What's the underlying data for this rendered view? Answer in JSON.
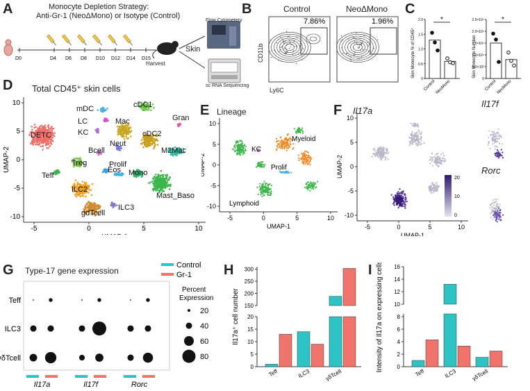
{
  "colors": {
    "control": "#2ec4c6",
    "gr1": "#f0746b",
    "green": "#3cb64a",
    "orange": "#f08c28",
    "purple": "#5a3aa0",
    "gray": "#b8b6c8"
  },
  "panelA": {
    "label": "A",
    "title1": "Monocyte Depletion Strategy:",
    "title2": "Anti-Gr-1 (NeoΔMono) or Isotype (Control)",
    "days": [
      "D0",
      "D4",
      "D6",
      "D8",
      "D10",
      "D12",
      "D14",
      "D15"
    ],
    "harvest": "Harvest",
    "skin": "Skin",
    "flow": "Flow Cytometery",
    "scrna": "sc RNA Sequencing"
  },
  "panelB": {
    "label": "B",
    "control": "Control",
    "neo": "NeoΔMono",
    "pct_control": "7.86%",
    "pct_neo": "1.96%",
    "ylab": "CD11b",
    "xlab": "Ly6C"
  },
  "panelC": {
    "label": "C",
    "ylab1": "Skin Monocyte % of CD45⁺",
    "ylab2": "Skin Monocyte Number",
    "cats": [
      "Control",
      "NeoMono"
    ],
    "star": "*",
    "left": {
      "bars": [
        1.3,
        0.58
      ],
      "ticks": [
        "0",
        "0.5",
        "1.0",
        "1.5",
        "2.0"
      ],
      "ymax": 2.0,
      "points": [
        [
          1.55,
          1.22,
          0.95
        ],
        [
          0.68,
          0.55,
          0.52
        ]
      ]
    },
    "right": {
      "bars": [
        1.5,
        0.8
      ],
      "ticks": [
        "0",
        "5.0×10³",
        "1.0×10⁴",
        "1.5×10⁴",
        "2.0×10⁴",
        "2.5×10⁴"
      ],
      "ymax": 2.5,
      "points": [
        [
          1.9,
          1.65,
          0.7
        ],
        [
          1.1,
          0.75,
          0.55
        ]
      ]
    }
  },
  "panelD": {
    "label": "D",
    "title": "Total CD45⁺ skin cells",
    "xlab": "UMAP-1",
    "ylab": "UMAP-2",
    "xticks": [
      "-5",
      "0",
      "5",
      "10"
    ],
    "yticks": [
      "10",
      "5",
      "0",
      "-5",
      "-10"
    ],
    "clusters": [
      "mDC",
      "cDC1",
      "LC",
      "Mac",
      "KC",
      "Gran",
      "cDC2",
      "DETC",
      "Neut",
      "Bcell",
      "M2Mac",
      "Treg",
      "Eos",
      "Teff",
      "Prolif",
      "Mono",
      "ILC2",
      "Mast_Baso",
      "gdTcell",
      "ILC3"
    ]
  },
  "panelE": {
    "label": "E",
    "title": "Lineage",
    "xlab": "UMAP-1",
    "ylab": "UMAP-2",
    "xticks": [
      "-5",
      "0",
      "5",
      "10"
    ],
    "yticks": [
      "10",
      "5",
      "0",
      "-5",
      "-10"
    ],
    "groups": [
      "Myeloid",
      "KC",
      "Prolif",
      "Lymphoid"
    ]
  },
  "panelF": {
    "label": "F",
    "gene_main": "Il17a",
    "gene2": "Il17f",
    "gene3": "Rorc",
    "xlab": "UMAP-1",
    "ylab": "UMAP-2",
    "xticks": [
      "-5",
      "0",
      "5",
      "10"
    ],
    "yticks": [
      "10",
      "5",
      "0",
      "-5",
      "-10"
    ],
    "scale": [
      "20",
      "10",
      "0"
    ]
  },
  "panelG": {
    "label": "G",
    "title": "Type-17 gene expression",
    "legend": [
      "Control",
      "Gr-1"
    ],
    "rows": [
      "Teff",
      "ILC3",
      "γδTcell"
    ],
    "genes": [
      "Il17a",
      "Il17f",
      "Rorc"
    ],
    "size_title1": "Percent",
    "size_title2": "Expression",
    "size_vals": [
      "20",
      "40",
      "60",
      "80"
    ],
    "dots": [
      [
        2,
        6,
        2,
        6,
        2,
        6
      ],
      [
        10,
        10,
        10,
        22,
        10,
        10
      ],
      [
        12,
        18,
        9,
        13,
        10,
        16
      ]
    ]
  },
  "panelH": {
    "label": "H",
    "ylab": "Il17a⁺ cell number",
    "cats": [
      "Teff",
      "ILC3",
      "γδTcell"
    ],
    "control": [
      1,
      14,
      188
    ],
    "gr1": [
      13,
      9,
      303
    ],
    "ticks_low": [
      "0",
      "5",
      "10",
      "15",
      "20"
    ],
    "ticks_high": [
      "150",
      "200",
      "250",
      "300"
    ]
  },
  "panelI": {
    "label": "I",
    "ylab": "Intensity of Il17a on expressing cells",
    "cats": [
      "Teff",
      "ILC3",
      "γδTcell"
    ],
    "control": [
      1.0,
      13.2,
      1.5
    ],
    "gr1": [
      4.3,
      3.3,
      2.5
    ],
    "ticks": [
      "0",
      "2",
      "4",
      "6",
      "8",
      "10",
      "12",
      "14",
      "16"
    ]
  }
}
